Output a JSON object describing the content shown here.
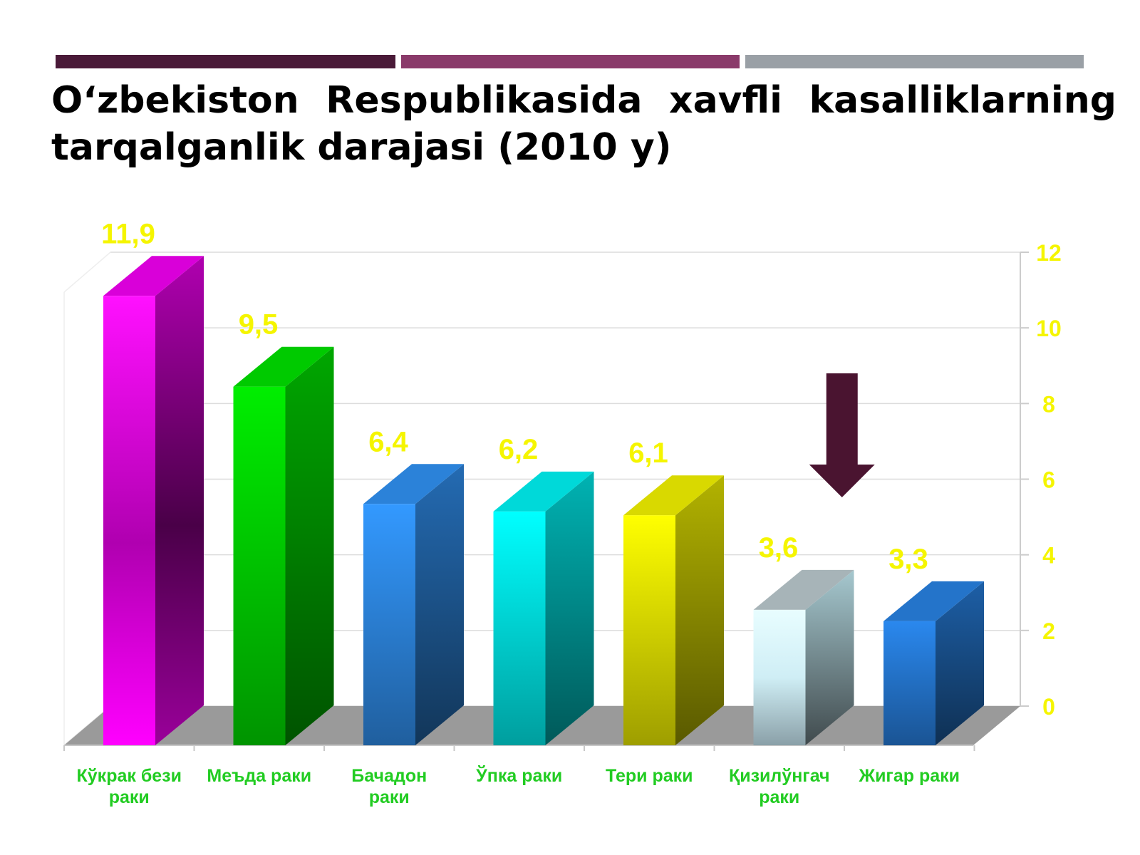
{
  "title": "O‘zbekiston Respublikasida xavfli kasalliklarning tarqalganlik darajasi  (2010 y)",
  "colors": {
    "stripe1": "#4a1a38",
    "stripe2": "#8a3a6a",
    "stripe3": "#9aa0a6",
    "value_label": "#f5f500",
    "category_label": "#22cc22",
    "arrow": "#4a1430"
  },
  "chart_data": {
    "type": "bar",
    "categories": [
      "Кўкрак бези раки",
      "Меъда раки",
      "Бачадон раки",
      "Ўпка раки",
      "Тери раки",
      "Қизилўнгач раки",
      "Жигар раки"
    ],
    "values": [
      11.9,
      9.5,
      6.4,
      6.2,
      6.1,
      3.6,
      3.3
    ],
    "value_labels": [
      "11,9",
      "9,5",
      "6,4",
      "6,2",
      "6,1",
      "3,6",
      "3,3"
    ],
    "bar_colors": [
      "#ff00ff",
      "#00ee00",
      "#3399ff",
      "#00ffff",
      "#ffff00",
      "#e8faff",
      "#2a88ee"
    ],
    "ylim": [
      0,
      12
    ],
    "y_ticks": [
      0,
      2,
      4,
      6,
      8,
      10,
      12
    ],
    "y_axis_side": "right",
    "grid": true,
    "three_d": true,
    "annotation": "down arrow above Қизилўнгач раки"
  }
}
